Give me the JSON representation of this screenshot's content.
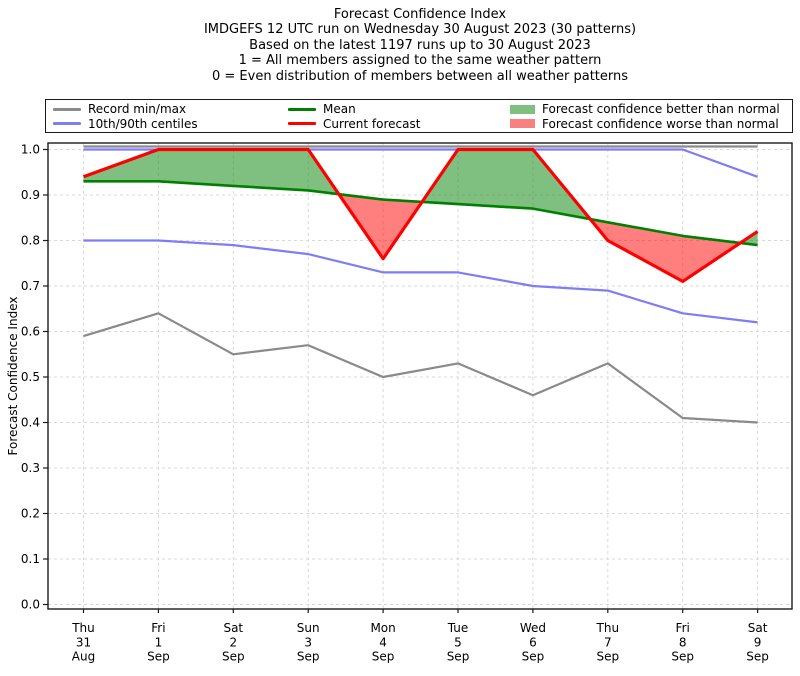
{
  "title": {
    "line1": "Forecast Confidence Index",
    "line2": "IMDGEFS 12 UTC run on Wednesday 30 August 2023 (30 patterns)",
    "line3": "Based on the latest 1197 runs up to 30 August 2023",
    "line4": "1 = All members assigned to the same weather pattern",
    "line5": "0 = Even distribution of members between all weather patterns"
  },
  "legend": {
    "entries": [
      {
        "label": "Record min/max",
        "kind": "line",
        "color": "#8a8a8a"
      },
      {
        "label": "10th/90th centiles",
        "kind": "line",
        "color": "#7d7df6"
      },
      {
        "label": "Mean",
        "kind": "line",
        "color": "#008000"
      },
      {
        "label": "Current forecast",
        "kind": "line",
        "color": "#ff0000"
      },
      {
        "label": "Forecast confidence better than normal",
        "kind": "patch",
        "color": "#80bf80"
      },
      {
        "label": "Forecast confidence worse than normal",
        "kind": "patch",
        "color": "#f88080"
      }
    ]
  },
  "chart_data": {
    "type": "line",
    "title": "Forecast Confidence Index",
    "subtitle_lines": [
      "IMDGEFS 12 UTC run on Wednesday 30 August 2023 (30 patterns)",
      "Based on the latest 1197 runs up to 30 August 2023",
      "1 = All members assigned to the same weather pattern",
      "0 = Even distribution of members between all weather patterns"
    ],
    "xlabel": "",
    "ylabel": "Forecast Confidence Index",
    "ylim": [
      0.0,
      1.0
    ],
    "yticks": [
      0.0,
      0.1,
      0.2,
      0.3,
      0.4,
      0.5,
      0.6,
      0.7,
      0.8,
      0.9,
      1.0
    ],
    "grid": "dashed both axes",
    "legend_position": "top, 3 columns, full width",
    "categories": [
      "Thu 31 Aug",
      "Fri 1 Sep",
      "Sat 2 Sep",
      "Sun 3 Sep",
      "Mon 4 Sep",
      "Tue 5 Sep",
      "Wed 6 Sep",
      "Thu 7 Sep",
      "Fri 8 Sep",
      "Sat 9 Sep"
    ],
    "x_tick_lines": [
      [
        "Thu",
        "31",
        "Aug"
      ],
      [
        "Fri",
        "1",
        "Sep"
      ],
      [
        "Sat",
        "2",
        "Sep"
      ],
      [
        "Sun",
        "3",
        "Sep"
      ],
      [
        "Mon",
        "4",
        "Sep"
      ],
      [
        "Tue",
        "5",
        "Sep"
      ],
      [
        "Wed",
        "6",
        "Sep"
      ],
      [
        "Thu",
        "7",
        "Sep"
      ],
      [
        "Fri",
        "8",
        "Sep"
      ],
      [
        "Sat",
        "9",
        "Sep"
      ]
    ],
    "series": [
      {
        "name": "Record max",
        "color": "#8a8a8a",
        "width": 2.2,
        "values": [
          1.0,
          1.0,
          1.0,
          1.0,
          1.0,
          1.0,
          1.0,
          1.0,
          1.0,
          1.0
        ]
      },
      {
        "name": "Record min",
        "color": "#8a8a8a",
        "width": 2.2,
        "values": [
          0.59,
          0.64,
          0.55,
          0.57,
          0.5,
          0.53,
          0.46,
          0.53,
          0.41,
          0.4
        ]
      },
      {
        "name": "90th centile",
        "color": "#7d7df6",
        "width": 2.2,
        "values": [
          1.0,
          1.0,
          1.0,
          1.0,
          1.0,
          1.0,
          1.0,
          1.0,
          1.0,
          0.94
        ]
      },
      {
        "name": "10th centile",
        "color": "#7d7df6",
        "width": 2.2,
        "values": [
          0.8,
          0.8,
          0.79,
          0.77,
          0.73,
          0.73,
          0.7,
          0.69,
          0.64,
          0.62
        ]
      },
      {
        "name": "Mean",
        "color": "#008000",
        "width": 2.6,
        "values": [
          0.93,
          0.93,
          0.92,
          0.91,
          0.89,
          0.88,
          0.87,
          0.84,
          0.81,
          0.79
        ]
      },
      {
        "name": "Current forecast",
        "color": "#ff0000",
        "width": 3.2,
        "values": [
          0.94,
          1.0,
          1.0,
          1.0,
          0.76,
          1.0,
          1.0,
          0.8,
          0.71,
          0.82
        ]
      }
    ],
    "fills": [
      {
        "name": "Forecast confidence better than normal",
        "between": [
          "Current forecast",
          "Mean"
        ],
        "where": "current above mean",
        "color": "rgba(0,128,0,0.5)"
      },
      {
        "name": "Forecast confidence worse than normal",
        "between": [
          "Current forecast",
          "Mean"
        ],
        "where": "current below mean",
        "color": "rgba(255,0,0,0.5)"
      }
    ],
    "grid_color": "#d9d9d9",
    "spine_color": "#1a1a1a"
  }
}
